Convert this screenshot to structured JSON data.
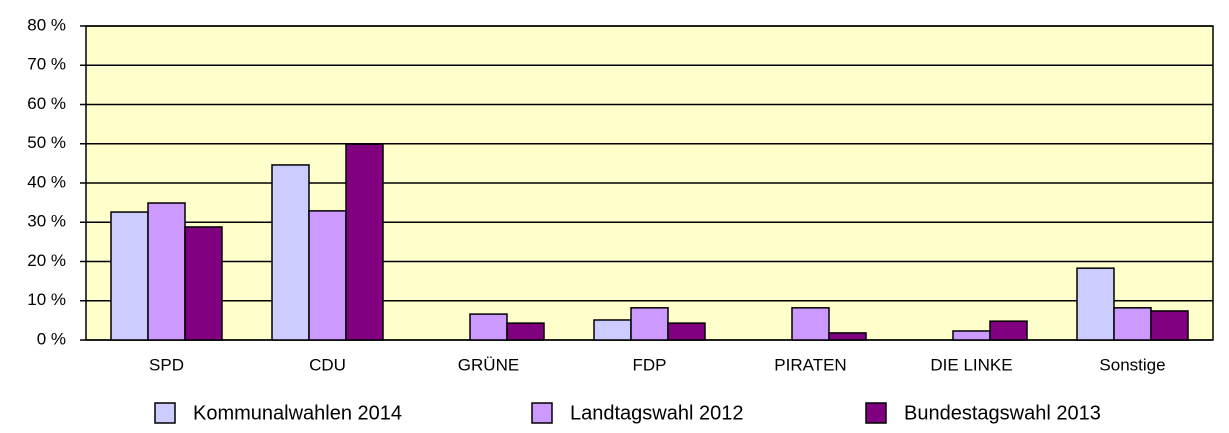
{
  "chart_data": {
    "type": "bar",
    "categories": [
      "SPD",
      "CDU",
      "GRÜNE",
      "FDP",
      "PIRATEN",
      "DIE LINKE",
      "Sonstige"
    ],
    "series": [
      {
        "name": "Kommunalwahlen 2014",
        "color": "#ccccff",
        "values": [
          32.6,
          44.6,
          0,
          5.1,
          0,
          0,
          18.3
        ]
      },
      {
        "name": "Landtagswahl 2012",
        "color": "#cc99ff",
        "values": [
          34.9,
          32.9,
          6.6,
          8.2,
          8.2,
          2.3,
          8.2
        ]
      },
      {
        "name": "Bundestagswahl 2013",
        "color": "#800080",
        "values": [
          28.8,
          49.9,
          4.3,
          4.3,
          1.8,
          4.8,
          7.4
        ]
      }
    ],
    "ylim": [
      0,
      80
    ],
    "yticks": [
      {
        "value": 0,
        "label": "0 %"
      },
      {
        "value": 10,
        "label": "10 %"
      },
      {
        "value": 20,
        "label": "20 %"
      },
      {
        "value": 30,
        "label": "30 %"
      },
      {
        "value": 40,
        "label": "40 %"
      },
      {
        "value": 50,
        "label": "50 %"
      },
      {
        "value": 60,
        "label": "60 %"
      },
      {
        "value": 70,
        "label": "70 %"
      },
      {
        "value": 80,
        "label": "80 %"
      }
    ],
    "grid": true,
    "legend": "bottom",
    "plot_background": "#ffffcc"
  }
}
